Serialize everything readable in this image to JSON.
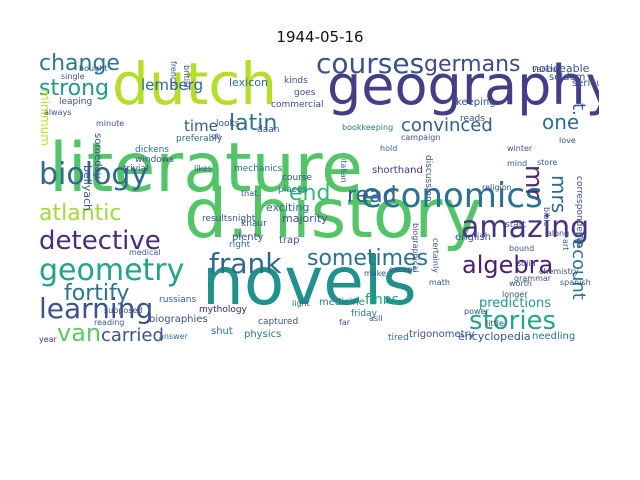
{
  "title": "1944-05-16",
  "words": [
    {
      "text": "literature",
      "color": "#52c569"
    },
    {
      "text": "d.history",
      "color": "#53c568"
    },
    {
      "text": "novels",
      "color": "#21918c"
    },
    {
      "text": "dutch",
      "color": "#b5de2b"
    },
    {
      "text": "geography",
      "color": "#433e85"
    },
    {
      "text": "economics",
      "color": "#2c728e"
    },
    {
      "text": "courses",
      "color": "#3b528b"
    },
    {
      "text": "germans",
      "color": "#3e4c8a"
    },
    {
      "text": "biology",
      "color": "#31688e"
    },
    {
      "text": "detective",
      "color": "#472d7b"
    },
    {
      "text": "geometry",
      "color": "#21a585"
    },
    {
      "text": "frank",
      "color": "#31688e"
    },
    {
      "text": "learning",
      "color": "#3b528b"
    },
    {
      "text": "amazing",
      "color": "#46337f"
    },
    {
      "text": "stories",
      "color": "#22a884"
    },
    {
      "text": "algebra",
      "color": "#481f70"
    },
    {
      "text": "latin",
      "color": "#2c728e"
    },
    {
      "text": "change",
      "color": "#2a788e"
    },
    {
      "text": "strong",
      "color": "#1f9a8a"
    },
    {
      "text": "sometimes",
      "color": "#2c728e"
    },
    {
      "text": "van",
      "color": "#5ec962"
    },
    {
      "text": "fortify",
      "color": "#2c728e"
    },
    {
      "text": "atlantic",
      "color": "#a0da39"
    },
    {
      "text": "read",
      "color": "#32648e"
    },
    {
      "text": "end",
      "color": "#35b779"
    },
    {
      "text": "carried",
      "color": "#3b528b"
    },
    {
      "text": "convinced",
      "color": "#365c8d"
    },
    {
      "text": "recount",
      "color": "#2a788e"
    },
    {
      "text": "one",
      "color": "#2c728e"
    },
    {
      "text": "mr",
      "color": "#472c7a"
    },
    {
      "text": "mrs",
      "color": "#31688e"
    },
    {
      "text": "t.",
      "color": "#38588c"
    },
    {
      "text": "lemberg",
      "color": "#31688e"
    },
    {
      "text": "time",
      "color": "#365c8d"
    },
    {
      "text": "predictions",
      "color": "#1e9c89"
    },
    {
      "text": "finns",
      "color": "#20a486"
    },
    {
      "text": "minimum",
      "color": "#c2df23"
    },
    {
      "text": "lexicon",
      "color": "#31688e"
    },
    {
      "text": "shorthand",
      "color": "#46327e"
    },
    {
      "text": "exciting",
      "color": "#31688e"
    },
    {
      "text": "trap",
      "color": "#3b528b"
    },
    {
      "text": "russians",
      "color": "#365c8d"
    },
    {
      "text": "supposed",
      "color": "#3e4c8a"
    },
    {
      "text": "mythology",
      "color": "#481b6d"
    },
    {
      "text": "biographies",
      "color": "#3b528b"
    },
    {
      "text": "shut",
      "color": "#2c728e"
    },
    {
      "text": "physics",
      "color": "#2a788e"
    },
    {
      "text": "trigonometry",
      "color": "#3b528b"
    },
    {
      "text": "encyclopedia",
      "color": "#3b528b"
    },
    {
      "text": "needling",
      "color": "#2c728e"
    },
    {
      "text": "answer",
      "color": "#2c728e"
    },
    {
      "text": "reading",
      "color": "#365c8d"
    },
    {
      "text": "medical",
      "color": "#365c8d"
    },
    {
      "text": "plenty",
      "color": "#3b528b"
    },
    {
      "text": "right",
      "color": "#2c728e"
    },
    {
      "text": "light",
      "color": "#31688e"
    },
    {
      "text": "captured",
      "color": "#3b528b"
    },
    {
      "text": "friday",
      "color": "#2c728e"
    },
    {
      "text": "tired",
      "color": "#2c728e"
    },
    {
      "text": "year",
      "color": "#46337f"
    },
    {
      "text": "knaur",
      "color": "#3b528b"
    },
    {
      "text": "medicine",
      "color": "#26828e"
    },
    {
      "text": "majority",
      "color": "#3b528b"
    },
    {
      "text": "resultsnight",
      "color": "#3b528b"
    },
    {
      "text": "someday",
      "color": "#3b528b"
    },
    {
      "text": "bellyach",
      "color": "#3b528b"
    },
    {
      "text": "trivial",
      "color": "#3b528b"
    },
    {
      "text": "dickens",
      "color": "#2c728e"
    },
    {
      "text": "windows",
      "color": "#3b528b"
    },
    {
      "text": "mechanics",
      "color": "#2c728e"
    },
    {
      "text": "places",
      "color": "#2c728e"
    },
    {
      "text": "course",
      "color": "#3b528b"
    },
    {
      "text": "italian",
      "color": "#31688e"
    },
    {
      "text": "looks",
      "color": "#3b528b"
    },
    {
      "text": "daan",
      "color": "#3b528b"
    },
    {
      "text": "commercial",
      "color": "#3b528b"
    },
    {
      "text": "goes",
      "color": "#3b528b"
    },
    {
      "text": "kinds",
      "color": "#3b528b"
    },
    {
      "text": "preferably",
      "color": "#31688e"
    },
    {
      "text": "minute",
      "color": "#3b528b"
    },
    {
      "text": "oh",
      "color": "#3b528b"
    },
    {
      "text": "likes",
      "color": "#3b528b"
    },
    {
      "text": "that.",
      "color": "#3b528b"
    },
    {
      "text": "bookkeeping",
      "color": "#2c728e"
    },
    {
      "text": "campaign",
      "color": "#3b528b"
    },
    {
      "text": "reads",
      "color": "#3b528b"
    },
    {
      "text": "english",
      "color": "#3b528b"
    },
    {
      "text": "mind",
      "color": "#3b528b"
    },
    {
      "text": "winter",
      "color": "#3b528b"
    },
    {
      "text": "discussion",
      "color": "#3b528b"
    },
    {
      "text": "hold",
      "color": "#31688e"
    },
    {
      "text": "store",
      "color": "#3b528b"
    },
    {
      "text": "keeping",
      "color": "#3b528b"
    },
    {
      "text": "noticeable",
      "color": "#3b528b"
    },
    {
      "text": "seldom",
      "color": "#3b528b"
    },
    {
      "text": "serious",
      "color": "#3b528b"
    },
    {
      "text": "correspondence",
      "color": "#3b528b"
    },
    {
      "text": "love",
      "color": "#3b528b"
    },
    {
      "text": "along",
      "color": "#3b528b"
    },
    {
      "text": "start",
      "color": "#3b528b"
    },
    {
      "text": "bound",
      "color": "#3b528b"
    },
    {
      "text": "solid",
      "color": "#3b528b"
    },
    {
      "text": "art",
      "color": "#3b528b"
    },
    {
      "text": "chemistry",
      "color": "#3b528b"
    },
    {
      "text": "make",
      "color": "#3b528b"
    },
    {
      "text": "except",
      "color": "#3b528b"
    },
    {
      "text": "biographical",
      "color": "#3b528b"
    },
    {
      "text": "math",
      "color": "#3b528b"
    },
    {
      "text": "asll",
      "color": "#3b528b"
    },
    {
      "text": "far",
      "color": "#3b528b"
    },
    {
      "text": "always",
      "color": "#3b528b"
    },
    {
      "text": "single",
      "color": "#3b528b"
    },
    {
      "text": "leaping",
      "color": "#3b528b"
    },
    {
      "text": "bought",
      "color": "#3b528b"
    },
    {
      "text": "british",
      "color": "#3b528b"
    },
    {
      "text": "french",
      "color": "#3b528b"
    },
    {
      "text": "grammar",
      "color": "#3b528b"
    },
    {
      "text": "religion",
      "color": "#3b528b"
    },
    {
      "text": "bible",
      "color": "#3b528b"
    },
    {
      "text": "power",
      "color": "#3b528b"
    },
    {
      "text": "longer",
      "color": "#3b528b"
    },
    {
      "text": "certainly",
      "color": "#3b528b"
    },
    {
      "text": "spanish",
      "color": "#3b528b"
    },
    {
      "text": "little",
      "color": "#3b528b"
    },
    {
      "text": "various",
      "color": "#3b528b"
    },
    {
      "text": "worth",
      "color": "#3b528b"
    }
  ]
}
